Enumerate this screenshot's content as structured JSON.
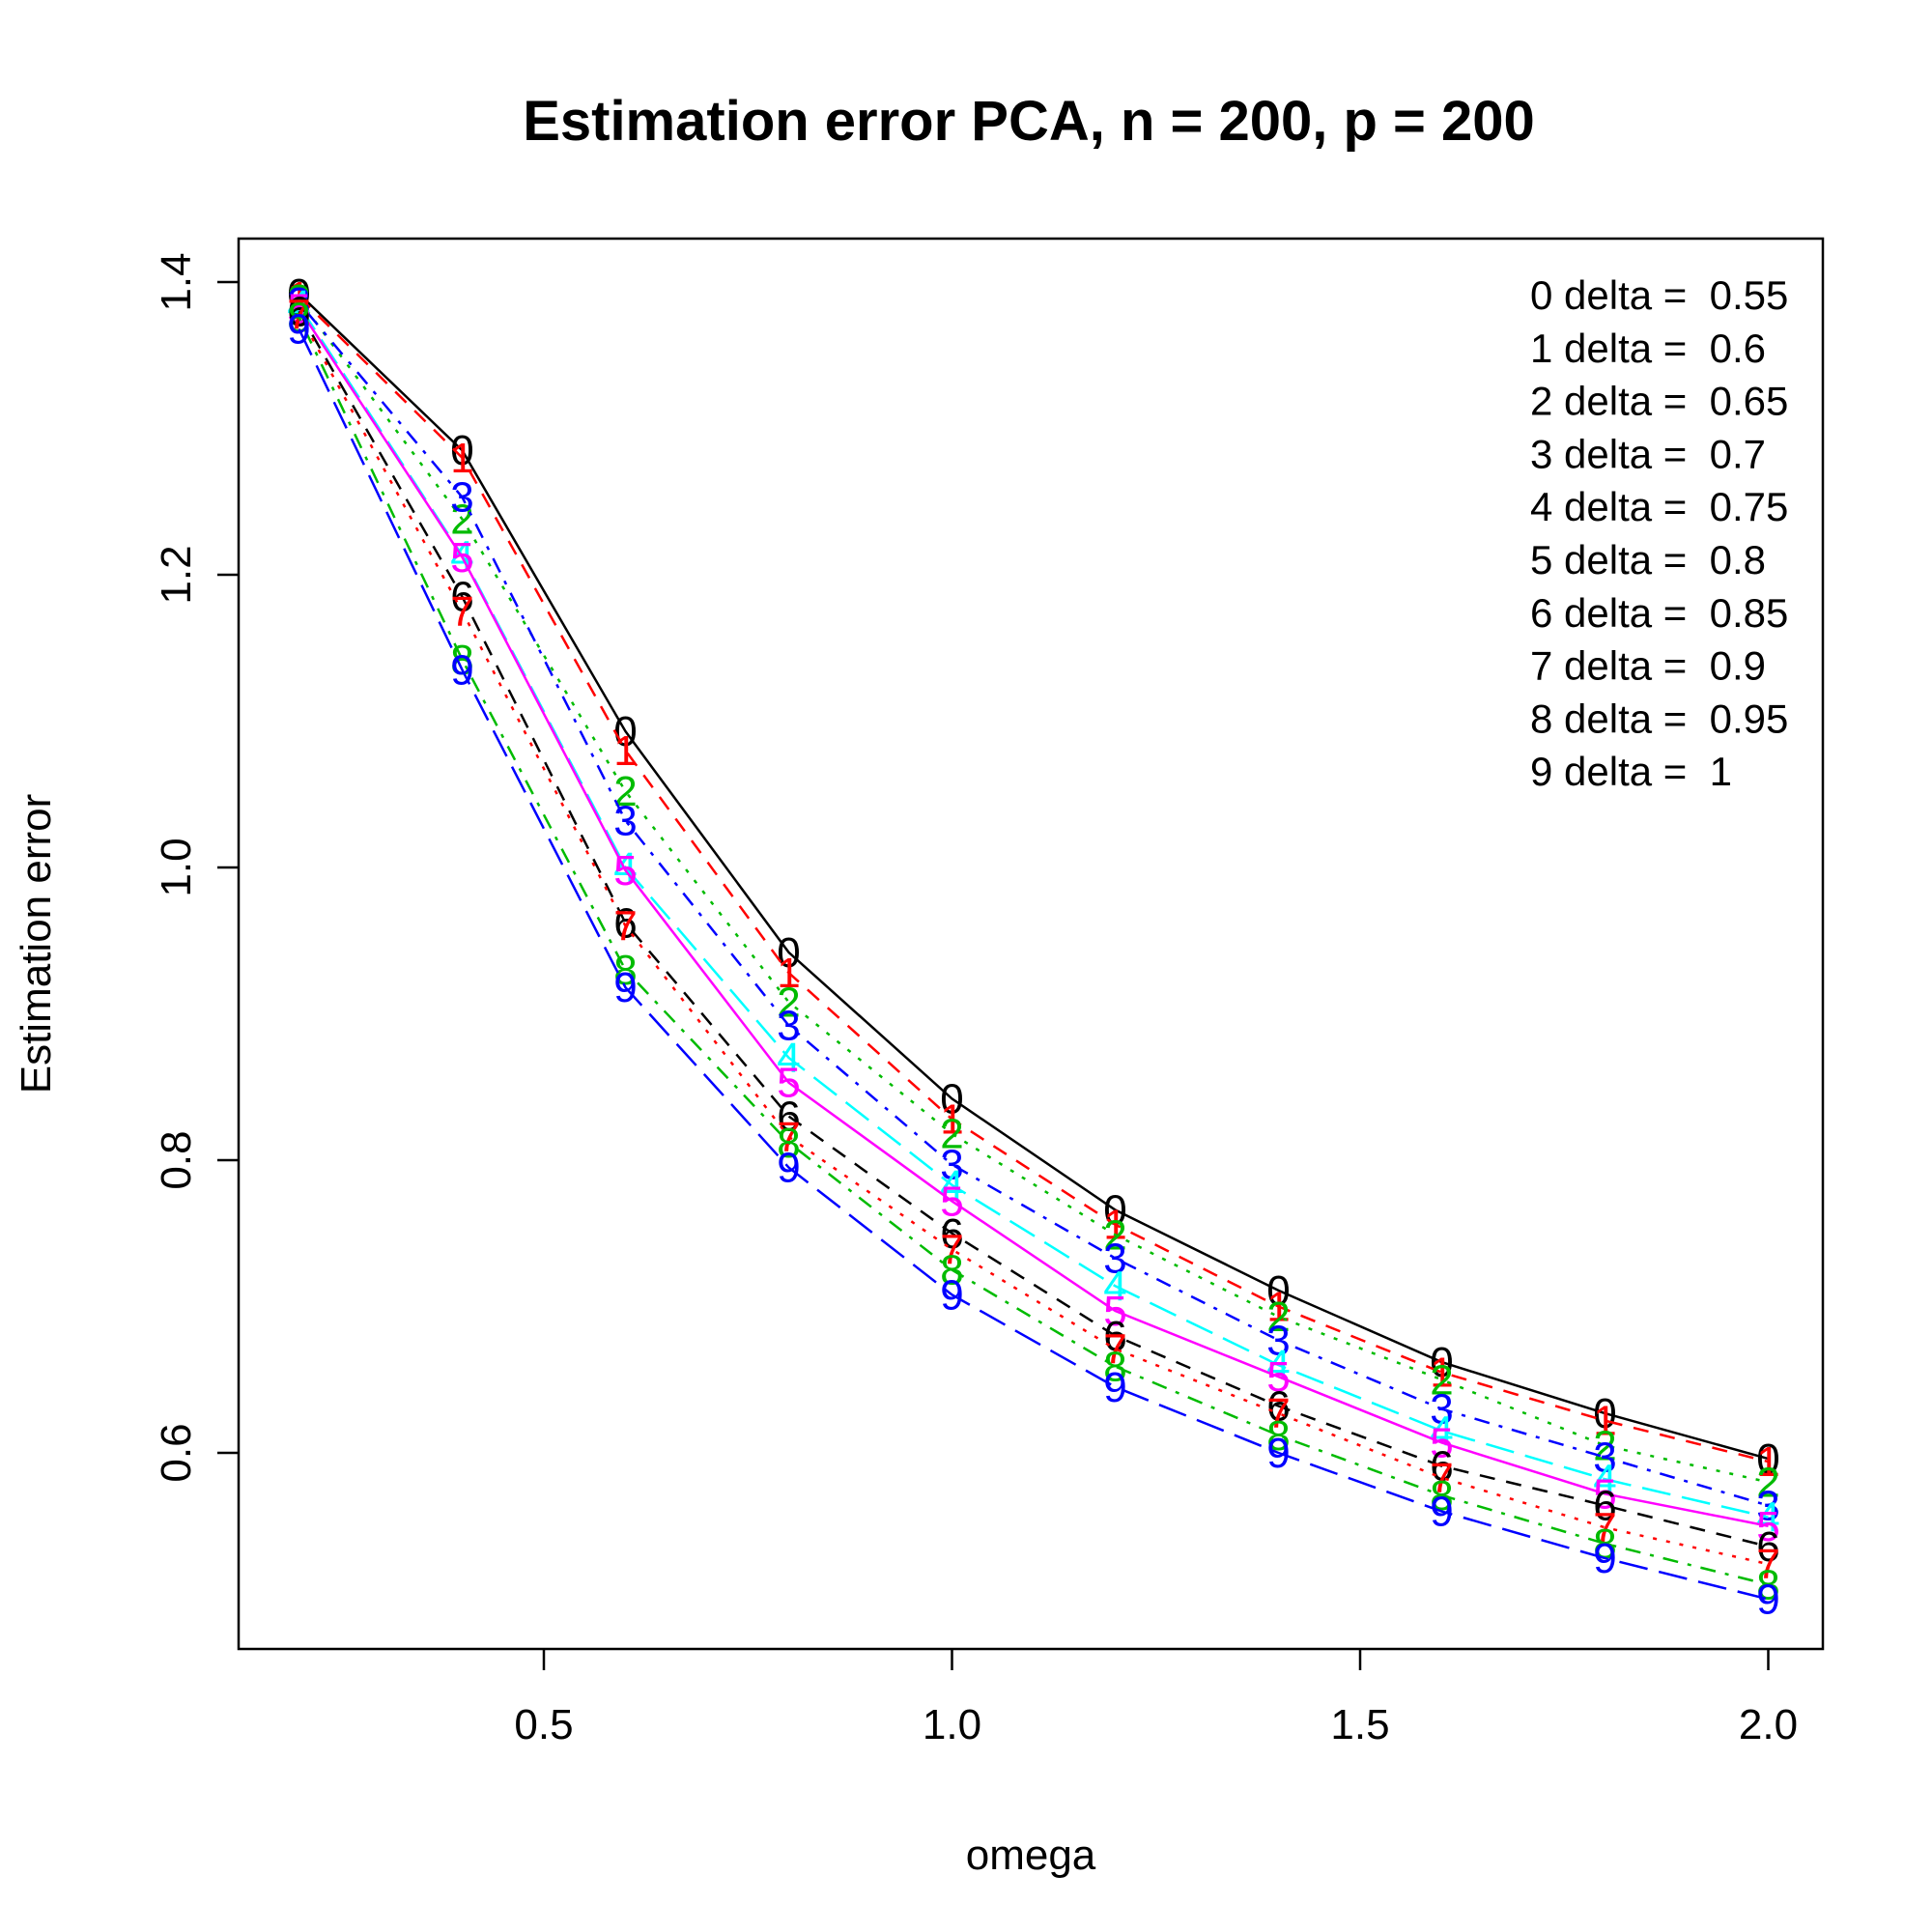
{
  "chart_data": {
    "type": "line",
    "title": "Estimation error PCA, n = 200, p = 200",
    "xlabel": "omega",
    "ylabel": "Estimation error",
    "xlim": [
      0.2,
      2.0
    ],
    "ylim": [
      0.49,
      1.41
    ],
    "xticks": [
      0.5,
      1.0,
      1.5,
      2.0
    ],
    "xtick_labels": [
      "0.5",
      "1.0",
      "1.5",
      "2.0"
    ],
    "yticks": [
      0.6,
      0.8,
      1.0,
      1.2,
      1.4
    ],
    "ytick_labels": [
      "0.6",
      "0.8",
      "1.0",
      "1.2",
      "1.4"
    ],
    "legend_position": "top-right",
    "x": [
      0.2,
      0.4,
      0.6,
      0.8,
      1.0,
      1.2,
      1.4,
      1.6,
      1.8,
      2.0
    ],
    "series": [
      {
        "name": "0 delta =  0.55",
        "symbol": "0",
        "color": "#000000",
        "dash": "solid",
        "values": [
          1.392,
          1.285,
          1.093,
          0.942,
          0.842,
          0.766,
          0.711,
          0.662,
          0.627,
          0.596
        ]
      },
      {
        "name": "1 delta =  0.6",
        "symbol": "1",
        "color": "#ff0000",
        "dash": "dashed",
        "values": [
          1.39,
          1.28,
          1.08,
          0.928,
          0.828,
          0.756,
          0.7,
          0.655,
          0.622,
          0.594
        ]
      },
      {
        "name": "2 delta =  0.65",
        "symbol": "2",
        "color": "#00bb00",
        "dash": "dotted",
        "values": [
          1.388,
          1.238,
          1.052,
          0.908,
          0.818,
          0.749,
          0.693,
          0.65,
          0.605,
          0.58
        ]
      },
      {
        "name": "3 delta =  0.7",
        "symbol": "3",
        "color": "#0000ff",
        "dash": "dotdash",
        "values": [
          1.386,
          1.253,
          1.032,
          0.892,
          0.797,
          0.733,
          0.677,
          0.63,
          0.597,
          0.564
        ]
      },
      {
        "name": "4 delta =  0.75",
        "symbol": "4",
        "color": "#00ffff",
        "dash": "longdash",
        "values": [
          1.384,
          1.213,
          1.0,
          0.87,
          0.783,
          0.714,
          0.66,
          0.615,
          0.582,
          0.556
        ]
      },
      {
        "name": "5 delta =  0.8",
        "symbol": "5",
        "color": "#ff00ff",
        "dash": "solid",
        "values": [
          1.382,
          1.212,
          0.998,
          0.853,
          0.772,
          0.697,
          0.652,
          0.607,
          0.572,
          0.55
        ]
      },
      {
        "name": "6 delta =  0.85",
        "symbol": "6",
        "color": "#000000",
        "dash": "dashed",
        "values": [
          1.38,
          1.185,
          0.962,
          0.83,
          0.75,
          0.68,
          0.632,
          0.591,
          0.564,
          0.536
        ]
      },
      {
        "name": "7 delta =  0.9",
        "symbol": "7",
        "color": "#ff0000",
        "dash": "dotted",
        "values": [
          1.378,
          1.175,
          0.96,
          0.816,
          0.739,
          0.671,
          0.627,
          0.583,
          0.549,
          0.524
        ]
      },
      {
        "name": "8 delta =  0.95",
        "symbol": "8",
        "color": "#00bb00",
        "dash": "dotdash",
        "values": [
          1.376,
          1.142,
          0.93,
          0.812,
          0.725,
          0.659,
          0.612,
          0.571,
          0.538,
          0.51
        ]
      },
      {
        "name": "9 delta =  1",
        "symbol": "9",
        "color": "#0000ff",
        "dash": "longdash",
        "values": [
          1.368,
          1.135,
          0.918,
          0.795,
          0.708,
          0.645,
          0.6,
          0.56,
          0.528,
          0.5
        ]
      }
    ]
  }
}
